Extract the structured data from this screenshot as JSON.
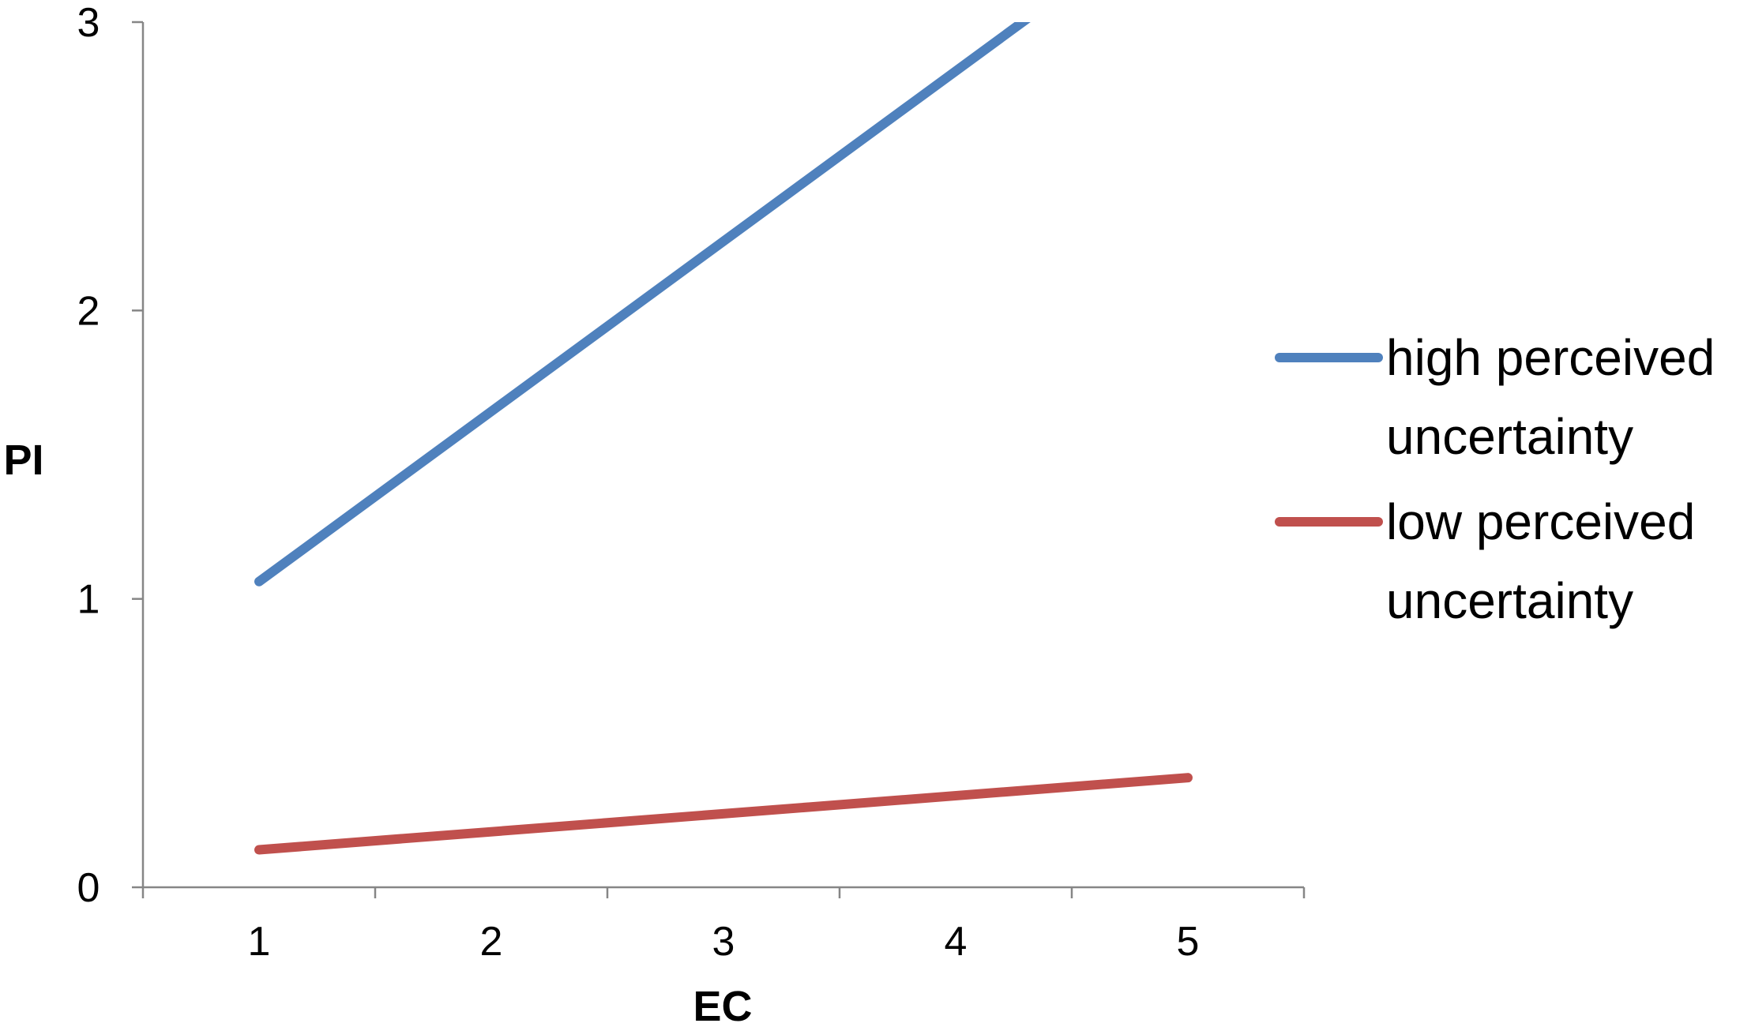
{
  "chart_data": {
    "type": "line",
    "title": "",
    "xlabel": "EC",
    "ylabel": "PI",
    "x": [
      1,
      5
    ],
    "xticks": [
      "1",
      "2",
      "3",
      "4",
      "5"
    ],
    "yticks": [
      "0",
      "1",
      "2",
      "3"
    ],
    "xlim": [
      0.5,
      5.5
    ],
    "ylim": [
      0,
      3
    ],
    "grid": false,
    "legend_position": "right",
    "series": [
      {
        "name": "high perceived uncertainty",
        "name_lines": [
          "high perceived",
          "uncertainty"
        ],
        "color": "#4F81BD",
        "values": [
          1.06,
          3.42
        ]
      },
      {
        "name": "low perceived uncertainty",
        "name_lines": [
          "low perceived",
          "uncertainty"
        ],
        "color": "#C0504D",
        "values": [
          0.13,
          0.38
        ]
      }
    ]
  }
}
